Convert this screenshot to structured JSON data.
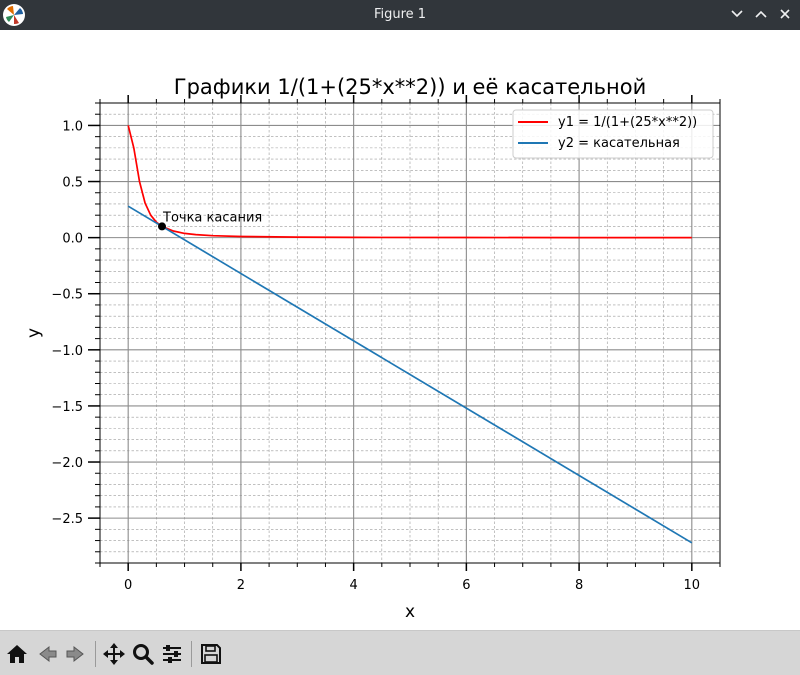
{
  "window": {
    "title": "Figure 1",
    "titlebar_color": "#31363b"
  },
  "toolbar": {
    "buttons": [
      {
        "name": "home-button",
        "icon": "home-icon"
      },
      {
        "name": "back-button",
        "icon": "back-arrow-icon"
      },
      {
        "name": "forward-button",
        "icon": "forward-arrow-icon"
      },
      {
        "name": "pan-button",
        "icon": "move-arrows-icon"
      },
      {
        "name": "zoom-button",
        "icon": "magnifier-icon"
      },
      {
        "name": "configure-subplots-button",
        "icon": "sliders-icon"
      },
      {
        "name": "save-button",
        "icon": "floppy-disk-icon"
      }
    ]
  },
  "chart_data": {
    "type": "line",
    "title": "Графики 1/(1+(25*x**2)) и её касательной",
    "xlabel": "x",
    "ylabel": "y",
    "xlim": [
      -0.5,
      10.5
    ],
    "ylim": [
      -2.9,
      1.2
    ],
    "xticks": [
      0,
      2,
      4,
      6,
      8,
      10
    ],
    "xtick_labels": [
      "0",
      "2",
      "4",
      "6",
      "8",
      "10"
    ],
    "yticks": [
      1.0,
      0.5,
      0.0,
      -0.5,
      -1.0,
      -1.5,
      -2.0,
      -2.5
    ],
    "ytick_labels": [
      "1.0",
      "0.5",
      "0.0",
      "−0.5",
      "−1.0",
      "−1.5",
      "−2.0",
      "−2.5"
    ],
    "grid": true,
    "minor_grid": true,
    "legend_position": "top-right",
    "series": [
      {
        "name": "y1 = 1/(1+(25*x**2))",
        "color": "#ff0000",
        "x": [
          0,
          0.1,
          0.2,
          0.3,
          0.4,
          0.5,
          0.6,
          0.8,
          1.0,
          1.2,
          1.5,
          2.0,
          3.0,
          4.0,
          6.0,
          8.0,
          10.0
        ],
        "y": [
          1.0,
          0.8,
          0.5,
          0.308,
          0.2,
          0.138,
          0.1,
          0.059,
          0.038,
          0.027,
          0.017,
          0.0099,
          0.0044,
          0.0025,
          0.0011,
          0.0006,
          0.0004
        ]
      },
      {
        "name": "y2 = касательная",
        "color": "#1f77b4",
        "x": [
          0,
          10
        ],
        "y": [
          0.28,
          -2.72
        ]
      }
    ],
    "annotations": [
      {
        "text": "Точка касания",
        "x": 0.6,
        "y": 0.1
      }
    ]
  }
}
